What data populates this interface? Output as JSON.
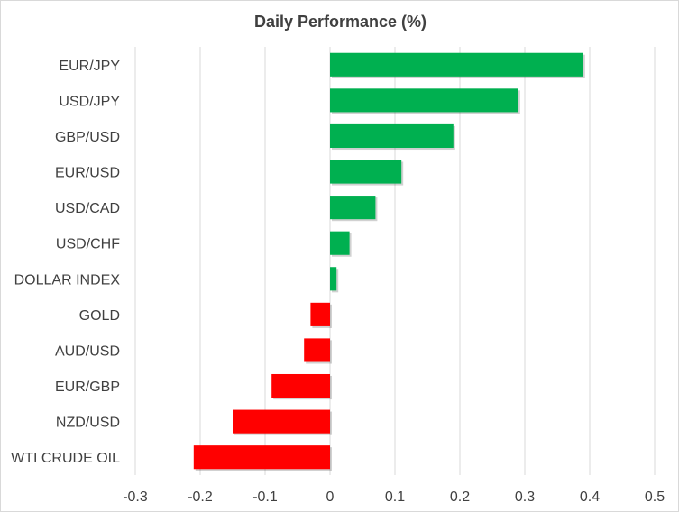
{
  "chart_data": {
    "type": "bar",
    "orientation": "horizontal",
    "title": "Daily Performance (%)",
    "categories": [
      "EUR/JPY",
      "USD/JPY",
      "GBP/USD",
      "EUR/USD",
      "USD/CAD",
      "USD/CHF",
      "DOLLAR INDEX",
      "GOLD",
      "AUD/USD",
      "EUR/GBP",
      "NZD/USD",
      "WTI CRUDE OIL"
    ],
    "values": [
      0.39,
      0.29,
      0.19,
      0.11,
      0.07,
      0.03,
      0.01,
      -0.03,
      -0.04,
      -0.09,
      -0.15,
      -0.21
    ],
    "xlim": [
      -0.3,
      0.5
    ],
    "xticks": [
      "-0.3",
      "-0.2",
      "-0.1",
      "0",
      "0.1",
      "0.2",
      "0.3",
      "0.4",
      "0.5"
    ],
    "grid": true,
    "legend": "none",
    "colors": {
      "positive": "#00b050",
      "negative": "#ff0000",
      "grid": "#d9d9d9",
      "text": "#404040"
    }
  }
}
